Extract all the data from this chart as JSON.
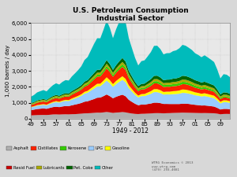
{
  "title": "U.S. Petroleum Consumption",
  "subtitle": "Industrial Sector",
  "xlabel": "1949 - 2012",
  "ylabel": "1,000 barrels / day",
  "years": [
    1949,
    1950,
    1951,
    1952,
    1953,
    1954,
    1955,
    1956,
    1957,
    1958,
    1959,
    1960,
    1961,
    1962,
    1963,
    1964,
    1965,
    1966,
    1967,
    1968,
    1969,
    1970,
    1971,
    1972,
    1973,
    1974,
    1975,
    1976,
    1977,
    1978,
    1979,
    1980,
    1981,
    1982,
    1983,
    1984,
    1985,
    1986,
    1987,
    1988,
    1989,
    1990,
    1991,
    1992,
    1993,
    1994,
    1995,
    1996,
    1997,
    1998,
    1999,
    2000,
    2001,
    2002,
    2003,
    2004,
    2005,
    2006,
    2007,
    2008,
    2009,
    2010,
    2011,
    2012
  ],
  "xtick_labels": [
    "49",
    "53",
    "57",
    "61",
    "65",
    "69",
    "73",
    "77",
    "81",
    "85",
    "89",
    "93",
    "97",
    "01",
    "05",
    "09"
  ],
  "xtick_positions": [
    1949,
    1953,
    1957,
    1961,
    1965,
    1969,
    1973,
    1977,
    1981,
    1985,
    1989,
    1993,
    1997,
    2001,
    2005,
    2009
  ],
  "ylim": [
    0,
    6000
  ],
  "yticks": [
    0,
    1000,
    2000,
    3000,
    4000,
    5000,
    6000
  ],
  "series": {
    "Asphalt": [
      200,
      210,
      220,
      225,
      230,
      225,
      240,
      260,
      265,
      255,
      265,
      270,
      265,
      275,
      280,
      295,
      310,
      330,
      335,
      345,
      360,
      375,
      370,
      390,
      415,
      390,
      355,
      380,
      390,
      410,
      390,
      350,
      320,
      295,
      285,
      300,
      305,
      315,
      325,
      340,
      345,
      340,
      330,
      340,
      345,
      355,
      360,
      365,
      375,
      370,
      365,
      360,
      355,
      350,
      345,
      350,
      345,
      340,
      335,
      310,
      270,
      290,
      295,
      290
    ],
    "Resid Fuel": [
      330,
      350,
      380,
      395,
      405,
      390,
      430,
      460,
      480,
      465,
      495,
      520,
      520,
      560,
      600,
      630,
      670,
      730,
      755,
      815,
      865,
      935,
      950,
      1020,
      1100,
      1020,
      920,
      990,
      1050,
      1090,
      1010,
      830,
      730,
      635,
      555,
      580,
      570,
      600,
      620,
      660,
      655,
      630,
      590,
      580,
      570,
      560,
      555,
      550,
      560,
      565,
      555,
      530,
      510,
      495,
      475,
      475,
      460,
      440,
      420,
      365,
      300,
      320,
      315,
      300
    ],
    "LPG": [
      170,
      185,
      210,
      220,
      230,
      220,
      250,
      275,
      295,
      285,
      310,
      325,
      320,
      360,
      390,
      420,
      455,
      510,
      540,
      600,
      660,
      710,
      710,
      790,
      870,
      810,
      720,
      800,
      870,
      930,
      880,
      740,
      650,
      560,
      490,
      530,
      540,
      570,
      610,
      660,
      660,
      630,
      590,
      600,
      600,
      620,
      630,
      650,
      680,
      670,
      650,
      630,
      600,
      590,
      570,
      590,
      570,
      550,
      530,
      460,
      380,
      420,
      415,
      395
    ],
    "Gasoline": [
      30,
      33,
      38,
      40,
      42,
      40,
      46,
      52,
      56,
      54,
      58,
      62,
      60,
      70,
      76,
      84,
      94,
      108,
      116,
      134,
      152,
      165,
      162,
      184,
      208,
      193,
      169,
      193,
      211,
      230,
      213,
      178,
      154,
      132,
      114,
      126,
      132,
      150,
      166,
      190,
      192,
      182,
      164,
      172,
      178,
      186,
      190,
      200,
      216,
      210,
      202,
      194,
      184,
      176,
      168,
      176,
      168,
      160,
      152,
      130,
      104,
      118,
      116,
      106
    ],
    "Distillates": [
      120,
      130,
      150,
      160,
      165,
      155,
      175,
      190,
      200,
      195,
      210,
      215,
      215,
      240,
      260,
      275,
      295,
      330,
      345,
      380,
      415,
      450,
      455,
      500,
      560,
      520,
      460,
      510,
      555,
      590,
      560,
      450,
      390,
      330,
      280,
      300,
      295,
      310,
      330,
      360,
      360,
      340,
      310,
      310,
      305,
      310,
      310,
      320,
      330,
      340,
      330,
      310,
      290,
      280,
      270,
      275,
      265,
      255,
      245,
      210,
      170,
      180,
      175,
      165
    ],
    "Kerosene": [
      30,
      32,
      35,
      36,
      37,
      35,
      40,
      44,
      46,
      44,
      48,
      50,
      48,
      56,
      60,
      66,
      72,
      82,
      88,
      100,
      112,
      120,
      118,
      132,
      148,
      138,
      122,
      136,
      148,
      158,
      148,
      126,
      112,
      98,
      86,
      94,
      98,
      110,
      120,
      134,
      136,
      130,
      118,
      122,
      126,
      130,
      132,
      138,
      146,
      142,
      138,
      132,
      126,
      120,
      114,
      118,
      112,
      106,
      100,
      86,
      70,
      78,
      76,
      70
    ],
    "Lubricants": [
      50,
      55,
      60,
      62,
      65,
      63,
      68,
      72,
      75,
      72,
      76,
      78,
      76,
      82,
      86,
      90,
      96,
      104,
      108,
      116,
      124,
      130,
      128,
      138,
      148,
      140,
      126,
      136,
      144,
      152,
      144,
      126,
      114,
      104,
      98,
      104,
      108,
      116,
      124,
      132,
      134,
      130,
      124,
      128,
      130,
      134,
      136,
      138,
      144,
      142,
      140,
      138,
      134,
      130,
      126,
      128,
      124,
      120,
      116,
      106,
      92,
      100,
      102,
      98
    ],
    "Pet. Coke": [
      40,
      44,
      50,
      52,
      55,
      52,
      58,
      64,
      68,
      66,
      72,
      76,
      74,
      84,
      90,
      98,
      108,
      122,
      130,
      148,
      166,
      180,
      178,
      200,
      224,
      210,
      184,
      208,
      228,
      248,
      232,
      196,
      172,
      148,
      130,
      142,
      148,
      168,
      184,
      208,
      212,
      202,
      184,
      192,
      198,
      208,
      212,
      222,
      238,
      234,
      226,
      220,
      212,
      204,
      196,
      202,
      196,
      190,
      182,
      158,
      128,
      142,
      140,
      130
    ],
    "Other": [
      400,
      440,
      500,
      530,
      560,
      530,
      610,
      680,
      730,
      700,
      770,
      820,
      810,
      920,
      1000,
      1090,
      1190,
      1360,
      1450,
      1640,
      1830,
      1980,
      1970,
      2220,
      2480,
      2280,
      1990,
      2260,
      2490,
      2680,
      2490,
      2060,
      1780,
      1510,
      1300,
      1430,
      1460,
      1570,
      1700,
      1880,
      1880,
      1780,
      1620,
      1660,
      1660,
      1730,
      1760,
      1830,
      1940,
      1900,
      1840,
      1790,
      1690,
      1650,
      1590,
      1660,
      1600,
      1540,
      1470,
      1260,
      1010,
      1140,
      1120,
      1050
    ]
  },
  "stack_order": [
    "Asphalt",
    "Resid Fuel",
    "LPG",
    "Gasoline",
    "Distillates",
    "Kerosene",
    "Lubricants",
    "Pet. Coke",
    "Other"
  ],
  "colors": {
    "Asphalt": "#b0b0b0",
    "Resid Fuel": "#cc0000",
    "LPG": "#99ccff",
    "Gasoline": "#ffff00",
    "Distillates": "#ff2200",
    "Kerosene": "#33cc00",
    "Lubricants": "#aaaa00",
    "Pet. Coke": "#006600",
    "Other": "#00bbbb"
  },
  "legend_row1": [
    "Asphalt",
    "Distillates",
    "Kerosene",
    "LPG",
    "Gasoline"
  ],
  "legend_row2": [
    "Resid Fuel",
    "Lubricants",
    "Pet. Coke",
    "Other"
  ],
  "background_color": "#d8d8d8",
  "plot_bg": "#e8e8e8",
  "watermark": "WTRG Economics © 2013\nwww.wtrg.com\n(479) 293-4081"
}
